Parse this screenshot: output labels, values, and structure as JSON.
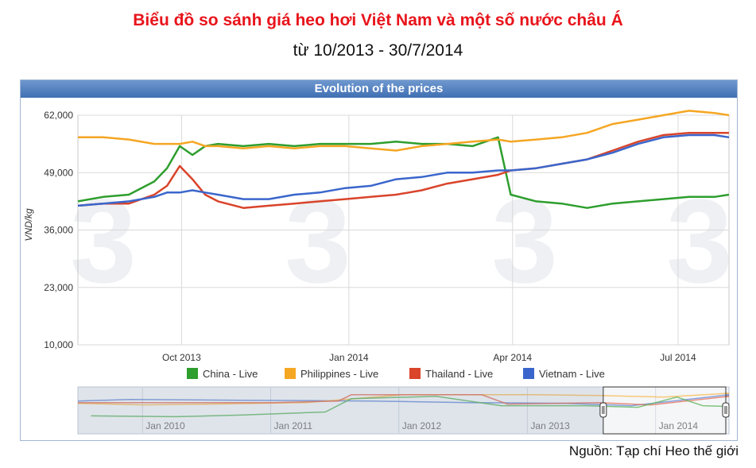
{
  "page": {
    "title": "Biểu đồ so sánh giá heo hơi Việt Nam và một số nước châu Á",
    "subtitle": "từ 10/2013 - 30/7/2014",
    "source": "Nguồn: Tạp chí Heo thế giới"
  },
  "colors": {
    "China - Live": "#2e9e2e",
    "Philippines - Live": "#f5a623",
    "Thailand - Live": "#d9442b",
    "Vietnam - Live": "#3a66cc",
    "header": "#4a78bb",
    "title": "#e8141b"
  },
  "chart_data": {
    "type": "line",
    "title": "Evolution of the prices",
    "ylabel": "VND/kg",
    "ylim": [
      10000,
      62000
    ],
    "yticks": [
      "10,000",
      "23,000",
      "36,000",
      "49,000",
      "62,000"
    ],
    "xticks": [
      "Oct 2013",
      "Jan 2014",
      "Apr 2014",
      "Jul 2014"
    ],
    "xrange": [
      "2013-08-05",
      "2014-07-29"
    ],
    "grid": true,
    "legend_position": "bottom",
    "x": [
      "2013-08-05",
      "2013-08-19",
      "2013-09-02",
      "2013-09-16",
      "2013-09-23",
      "2013-09-30",
      "2013-10-07",
      "2013-10-14",
      "2013-10-21",
      "2013-11-04",
      "2013-11-18",
      "2013-12-02",
      "2013-12-16",
      "2013-12-30",
      "2014-01-13",
      "2014-01-27",
      "2014-02-10",
      "2014-02-24",
      "2014-03-10",
      "2014-03-24",
      "2014-03-31",
      "2014-04-14",
      "2014-04-28",
      "2014-05-12",
      "2014-05-26",
      "2014-06-09",
      "2014-06-23",
      "2014-07-07",
      "2014-07-21",
      "2014-07-29"
    ],
    "series": [
      {
        "name": "China - Live",
        "values": [
          42500,
          43500,
          44000,
          47000,
          50000,
          55000,
          53000,
          55000,
          55500,
          55000,
          55500,
          55000,
          55500,
          55500,
          55500,
          56000,
          55500,
          55500,
          55000,
          57000,
          44000,
          42500,
          42000,
          41000,
          42000,
          42500,
          43000,
          43500,
          43500,
          44000
        ]
      },
      {
        "name": "Philippines - Live",
        "values": [
          57000,
          57000,
          56500,
          55500,
          55500,
          55500,
          56000,
          55000,
          55000,
          54500,
          55000,
          54500,
          55000,
          55000,
          54500,
          54000,
          55000,
          55500,
          56000,
          56500,
          56000,
          56500,
          57000,
          58000,
          60000,
          61000,
          62000,
          63000,
          62500,
          62000
        ]
      },
      {
        "name": "Thailand - Live",
        "values": [
          41500,
          42000,
          42000,
          44000,
          46000,
          50500,
          47500,
          44000,
          42500,
          41000,
          41500,
          42000,
          42500,
          43000,
          43500,
          44000,
          45000,
          46500,
          47500,
          48500,
          49500,
          50000,
          51000,
          52000,
          54000,
          56000,
          57500,
          58000,
          58000,
          58000
        ]
      },
      {
        "name": "Vietnam - Live",
        "values": [
          41500,
          42000,
          42500,
          43500,
          44500,
          44500,
          45000,
          44500,
          44000,
          43000,
          43000,
          44000,
          44500,
          45500,
          46000,
          47500,
          48000,
          49000,
          49000,
          49500,
          49500,
          50000,
          51000,
          52000,
          53500,
          55500,
          57000,
          57500,
          57500,
          57000
        ]
      }
    ],
    "navigator_xticks": [
      "Jan 2010",
      "Jan 2011",
      "Jan 2012",
      "Jan 2013",
      "Jan 2014"
    ]
  }
}
